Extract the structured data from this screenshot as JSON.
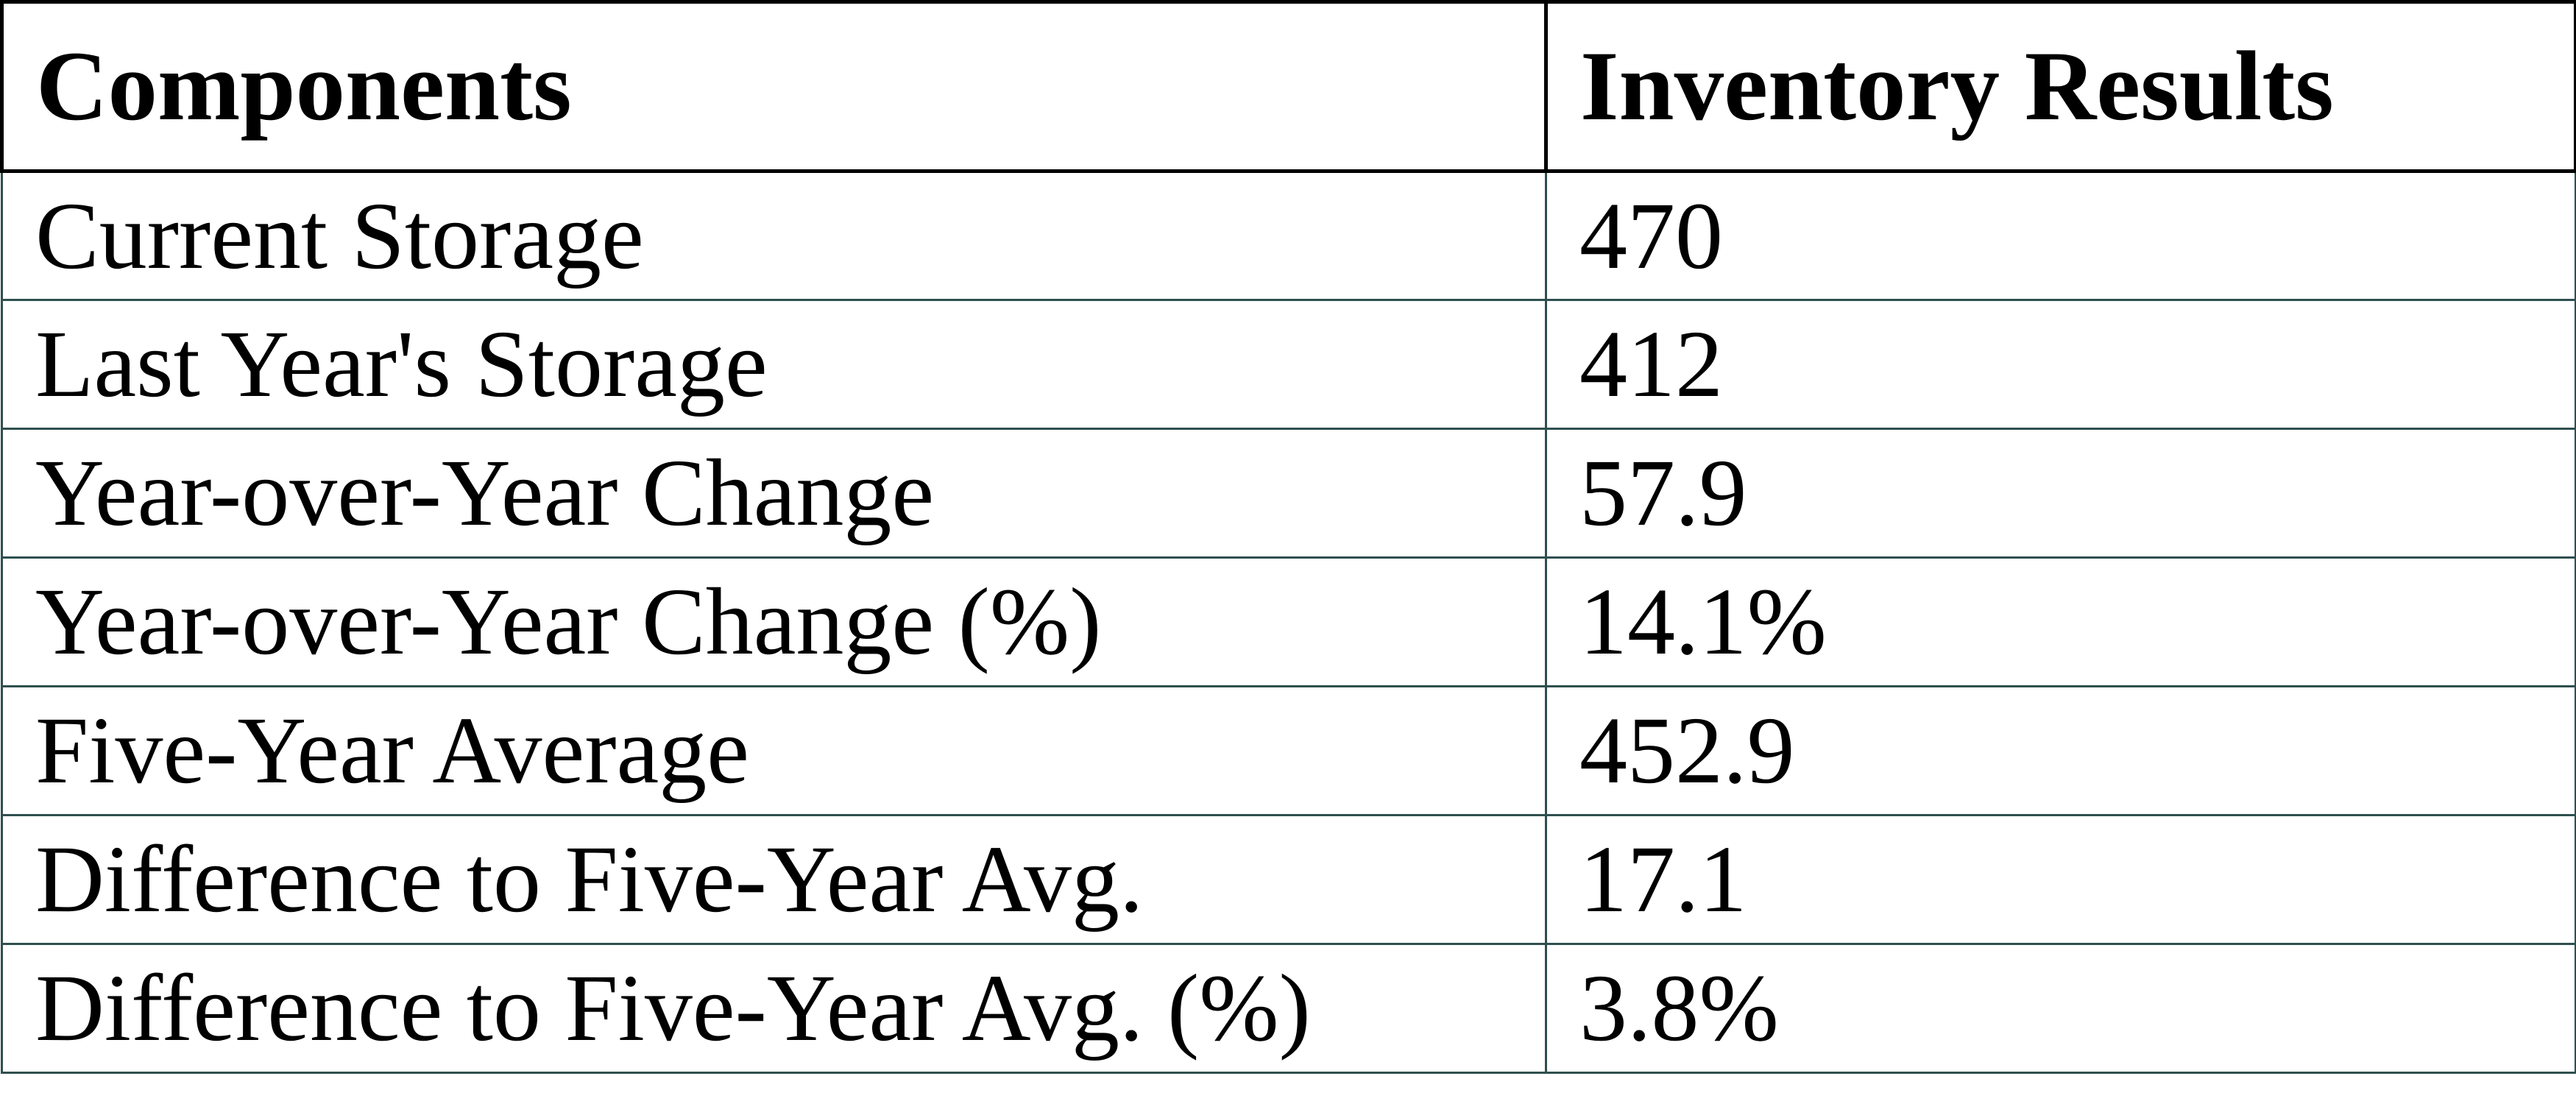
{
  "page": {
    "background_color": "#ffffff",
    "header_border_color": "#000000",
    "body_border_color": "#2F4F4F",
    "text_color": "#000000"
  },
  "table": {
    "columns": [
      {
        "label": "Components"
      },
      {
        "label": "Inventory Results"
      }
    ],
    "rows": [
      {
        "label": "Current Storage",
        "value": "470"
      },
      {
        "label": "Last Year's Storage",
        "value": "412"
      },
      {
        "label": "Year-over-Year Change",
        "value": "57.9"
      },
      {
        "label": "Year-over-Year Change (%)",
        "value": "14.1%"
      },
      {
        "label": "Five-Year Average",
        "value": "452.9"
      },
      {
        "label": "Difference to Five-Year Avg.",
        "value": "17.1"
      },
      {
        "label": "Difference to Five-Year Avg. (%)",
        "value": "3.8%"
      }
    ]
  },
  "chart_data": {
    "type": "table",
    "title": "",
    "columns": [
      "Components",
      "Inventory Results"
    ],
    "rows": [
      [
        "Current Storage",
        "470"
      ],
      [
        "Last Year's Storage",
        "412"
      ],
      [
        "Year-over-Year Change",
        "57.9"
      ],
      [
        "Year-over-Year Change (%)",
        "14.1%"
      ],
      [
        "Five-Year Average",
        "452.9"
      ],
      [
        "Difference to Five-Year Avg.",
        "17.1"
      ],
      [
        "Difference to Five-Year Avg. (%)",
        "3.8%"
      ]
    ]
  }
}
